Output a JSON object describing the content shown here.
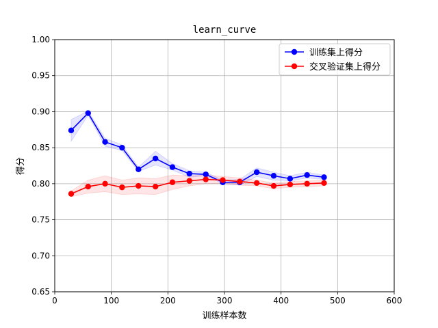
{
  "chart_data": {
    "type": "line",
    "title": "learn_curve",
    "xlabel": "训练样本数",
    "ylabel": "得分",
    "xlim": [
      0,
      600
    ],
    "ylim": [
      0.65,
      1.0
    ],
    "xticks": [
      0,
      100,
      200,
      300,
      400,
      500,
      600
    ],
    "yticks": [
      0.65,
      0.7,
      0.75,
      0.8,
      0.85,
      0.9,
      0.95,
      1.0
    ],
    "xtick_labels": [
      "0",
      "100",
      "200",
      "300",
      "400",
      "500",
      "600"
    ],
    "ytick_labels": [
      "0.65",
      "0.70",
      "0.75",
      "0.80",
      "0.85",
      "0.90",
      "0.95",
      "1.00"
    ],
    "grid": true,
    "legend_position": "top-right",
    "x": [
      29,
      59,
      89,
      119,
      148,
      178,
      208,
      238,
      267,
      297,
      327,
      357,
      387,
      416,
      446,
      476
    ],
    "series": [
      {
        "name": "训练集上得分",
        "color": "#0000ff",
        "band_color": "#0000ff",
        "values": [
          0.874,
          0.898,
          0.858,
          0.85,
          0.82,
          0.835,
          0.823,
          0.814,
          0.813,
          0.802,
          0.802,
          0.816,
          0.811,
          0.807,
          0.812,
          0.809
        ],
        "band_low": [
          0.859,
          0.895,
          0.852,
          0.846,
          0.817,
          0.826,
          0.819,
          0.809,
          0.811,
          0.8,
          0.798,
          0.81,
          0.805,
          0.804,
          0.808,
          0.806
        ],
        "band_high": [
          0.889,
          0.901,
          0.863,
          0.854,
          0.823,
          0.845,
          0.828,
          0.818,
          0.816,
          0.805,
          0.806,
          0.822,
          0.816,
          0.811,
          0.816,
          0.812
        ]
      },
      {
        "name": "交叉验证集上得分",
        "color": "#ff0000",
        "band_color": "#ff0000",
        "values": [
          0.786,
          0.796,
          0.8,
          0.795,
          0.797,
          0.796,
          0.802,
          0.804,
          0.806,
          0.805,
          0.803,
          0.801,
          0.797,
          0.799,
          0.8,
          0.801
        ],
        "band_low": [
          0.782,
          0.787,
          0.789,
          0.785,
          0.786,
          0.785,
          0.792,
          0.797,
          0.8,
          0.8,
          0.798,
          0.797,
          0.793,
          0.795,
          0.796,
          0.797
        ],
        "band_high": [
          0.79,
          0.805,
          0.811,
          0.805,
          0.808,
          0.807,
          0.812,
          0.811,
          0.812,
          0.81,
          0.808,
          0.805,
          0.801,
          0.803,
          0.804,
          0.805
        ]
      }
    ]
  }
}
